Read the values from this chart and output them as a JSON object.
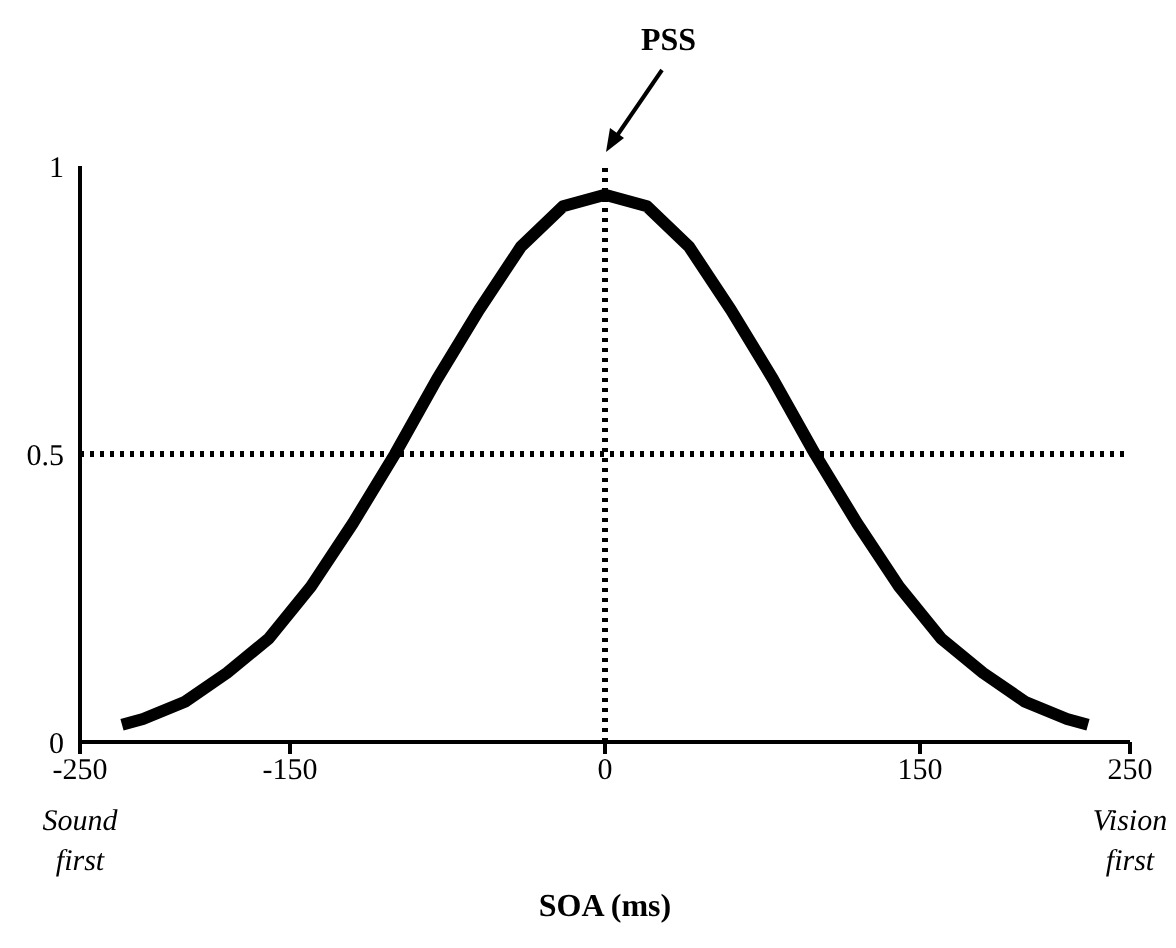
{
  "chart_data": {
    "type": "line",
    "xlabel": "SOA (ms)",
    "annotations": [
      "Sound first",
      "Vision first"
    ],
    "x": [
      -230,
      -220,
      -200,
      -180,
      -160,
      -140,
      -120,
      -100,
      -80,
      -60,
      -40,
      -20,
      0,
      20,
      40,
      60,
      80,
      100,
      120,
      140,
      160,
      180,
      200,
      220,
      230
    ],
    "series": [
      {
        "color": "#000000",
        "values": [
          0.03,
          0.04,
          0.07,
          0.12,
          0.18,
          0.27,
          0.38,
          0.5,
          0.63,
          0.75,
          0.86,
          0.93,
          0.95,
          0.93,
          0.86,
          0.75,
          0.63,
          0.5,
          0.38,
          0.27,
          0.18,
          0.12,
          0.07,
          0.04,
          0.03
        ]
      }
    ],
    "xlim": [
      -250,
      250
    ],
    "xticks": [
      -250,
      -150,
      0,
      150,
      250
    ],
    "ylim": [
      0,
      1
    ],
    "yticks": [
      0,
      0.5,
      1
    ],
    "ref_lines": [
      {
        "axis": "x",
        "value": 0,
        "label": "PSS",
        "line_style": "dotted"
      },
      {
        "axis": "y",
        "value": 0.5,
        "line_style": "dotted"
      }
    ]
  }
}
